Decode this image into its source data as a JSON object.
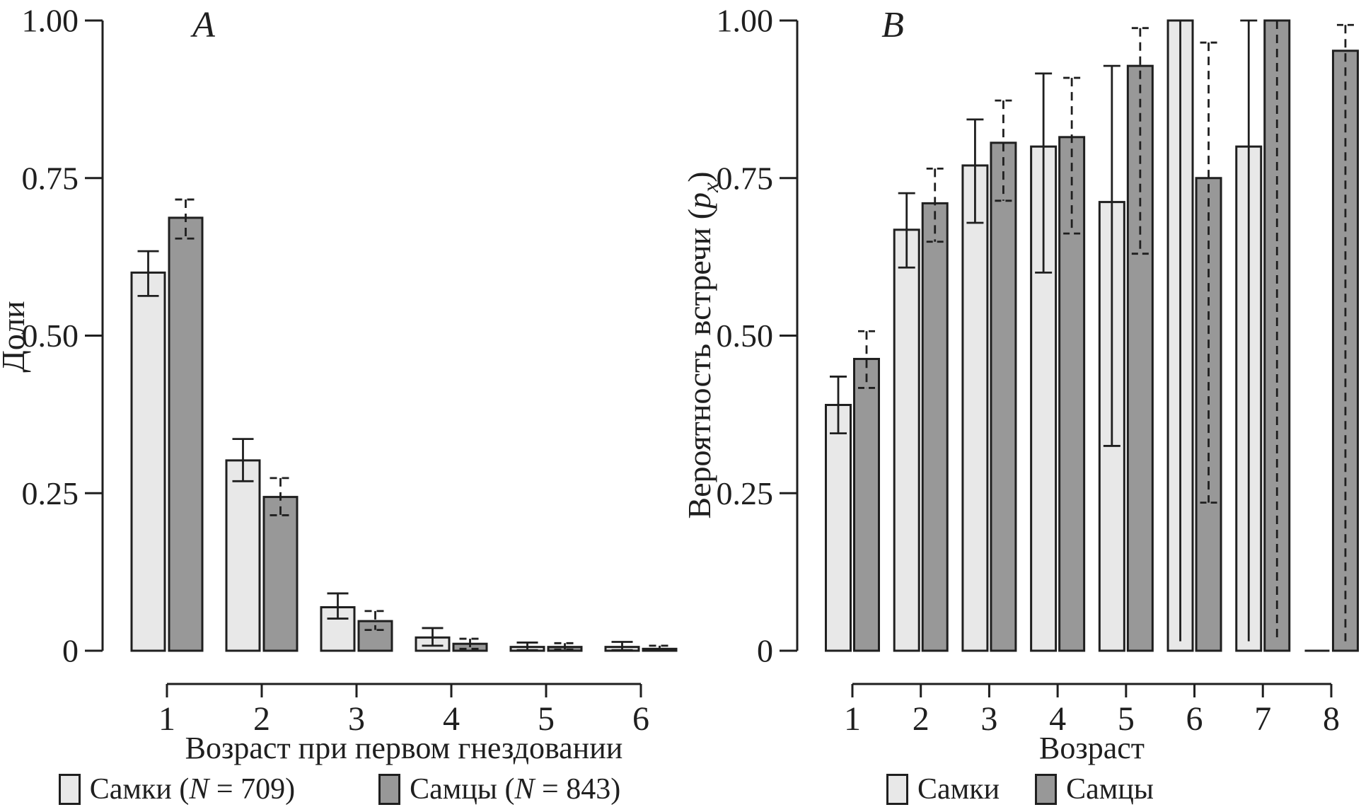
{
  "figure_title": "",
  "accent_colors": {
    "female_fill": "#e8e8e8",
    "male_fill": "#989898",
    "line": "#1f1f1f"
  },
  "chart_data": [
    {
      "type": "bar",
      "panel_label": "A",
      "title": "",
      "xlabel": "Возраст при первом гнездовании",
      "ylabel": {
        "text": "Доли"
      },
      "categories": [
        "1",
        "2",
        "3",
        "4",
        "5",
        "6"
      ],
      "ylim": [
        0,
        1
      ],
      "grid": false,
      "legend_position": "bottom",
      "yticks": {
        "values": [
          1,
          0.75,
          0.5,
          0.25,
          0
        ],
        "labels": [
          "1.00",
          "0.75",
          "0.50",
          "0.25",
          "0"
        ]
      },
      "series": [
        {
          "name": "Самки (N = 709)",
          "fill": "#e8e8e8",
          "error_style": "solid",
          "values": [
            0.6,
            0.302,
            0.069,
            0.021,
            0.006,
            0.006
          ],
          "errors": [
            {
              "lo": 0.563,
              "hi": 0.634
            },
            {
              "lo": 0.269,
              "hi": 0.336
            },
            {
              "lo": 0.051,
              "hi": 0.091
            },
            {
              "lo": 0.008,
              "hi": 0.036
            },
            {
              "lo": 0.001,
              "hi": 0.013
            },
            {
              "lo": 0.001,
              "hi": 0.014
            }
          ]
        },
        {
          "name": "Самцы (N = 843)",
          "fill": "#989898",
          "error_style": "dashed",
          "values": [
            0.687,
            0.244,
            0.047,
            0.011,
            0.006,
            0.003
          ],
          "errors": [
            {
              "lo": 0.654,
              "hi": 0.716
            },
            {
              "lo": 0.215,
              "hi": 0.274
            },
            {
              "lo": 0.033,
              "hi": 0.063
            },
            {
              "lo": 0.003,
              "hi": 0.019
            },
            {
              "lo": 0.002,
              "hi": 0.012
            },
            {
              "lo": 0.001,
              "hi": 0.008
            }
          ]
        }
      ]
    },
    {
      "type": "bar",
      "panel_label": "B",
      "title": "",
      "xlabel": "Возраст",
      "ylabel": {
        "text": "Вероятность встречи (",
        "sym": "p",
        "sub": "x",
        "close": ")"
      },
      "categories": [
        "1",
        "2",
        "3",
        "4",
        "5",
        "6",
        "7",
        "8"
      ],
      "ylim": [
        0,
        1
      ],
      "grid": false,
      "legend_position": "bottom",
      "yticks": {
        "values": [
          1,
          0.75,
          0.5,
          0.25,
          0
        ],
        "labels": [
          "1.00",
          "0.75",
          "0.50",
          "0.25",
          "0"
        ]
      },
      "series": [
        {
          "name": "Самки",
          "fill": "#e8e8e8",
          "error_style": "solid",
          "values": [
            0.39,
            0.668,
            0.77,
            0.8,
            0.712,
            1.0,
            0.8,
            0.0
          ],
          "errors": [
            {
              "lo": 0.345,
              "hi": 0.435
            },
            {
              "lo": 0.608,
              "hi": 0.726
            },
            {
              "lo": 0.679,
              "hi": 0.843
            },
            {
              "lo": 0.6,
              "hi": 0.916
            },
            {
              "lo": 0.325,
              "hi": 0.928
            },
            {
              "lo": 0.015,
              "hi": 1.0,
              "no_lo_cap": true
            },
            {
              "lo": 0.015,
              "hi": 1.0,
              "no_lo_cap": true
            },
            null
          ]
        },
        {
          "name": "Самцы",
          "fill": "#989898",
          "error_style": "dashed",
          "values": [
            0.463,
            0.71,
            0.806,
            0.815,
            0.928,
            0.75,
            1.0,
            0.952
          ],
          "errors": [
            {
              "lo": 0.417,
              "hi": 0.507
            },
            {
              "lo": 0.649,
              "hi": 0.765
            },
            {
              "lo": 0.714,
              "hi": 0.873
            },
            {
              "lo": 0.662,
              "hi": 0.909
            },
            {
              "lo": 0.63,
              "hi": 0.988
            },
            {
              "lo": 0.235,
              "hi": 0.965
            },
            {
              "lo": 0.015,
              "hi": 1.0,
              "no_lo_cap": true
            },
            {
              "lo": 0.015,
              "hi": 0.993,
              "no_lo_cap": true
            }
          ]
        }
      ]
    }
  ]
}
